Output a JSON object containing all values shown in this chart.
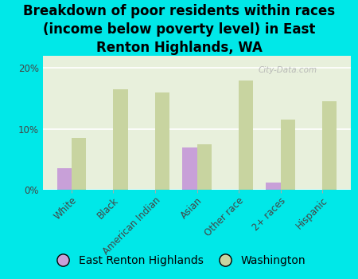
{
  "title": "Breakdown of poor residents within races\n(income below poverty level) in East\nRenton Highlands, WA",
  "categories": [
    "White",
    "Black",
    "American Indian",
    "Asian",
    "Other race",
    "2+ races",
    "Hispanic"
  ],
  "erh_values": [
    3.5,
    0,
    0,
    7.0,
    0,
    1.2,
    0
  ],
  "wa_values": [
    8.5,
    16.5,
    16.0,
    7.5,
    18.0,
    11.5,
    14.5
  ],
  "erh_color": "#c8a0d8",
  "wa_color": "#c8d4a0",
  "bg_color": "#00e8e8",
  "plot_bg_color": "#e8f0dc",
  "ylim": [
    0,
    22
  ],
  "yticks": [
    0,
    10,
    20
  ],
  "ytick_labels": [
    "0%",
    "10%",
    "20%"
  ],
  "bar_width": 0.35,
  "watermark": "City-Data.com",
  "legend_erh": "East Renton Highlands",
  "legend_wa": "Washington",
  "title_fontsize": 12,
  "tick_fontsize": 8.5,
  "legend_fontsize": 10
}
